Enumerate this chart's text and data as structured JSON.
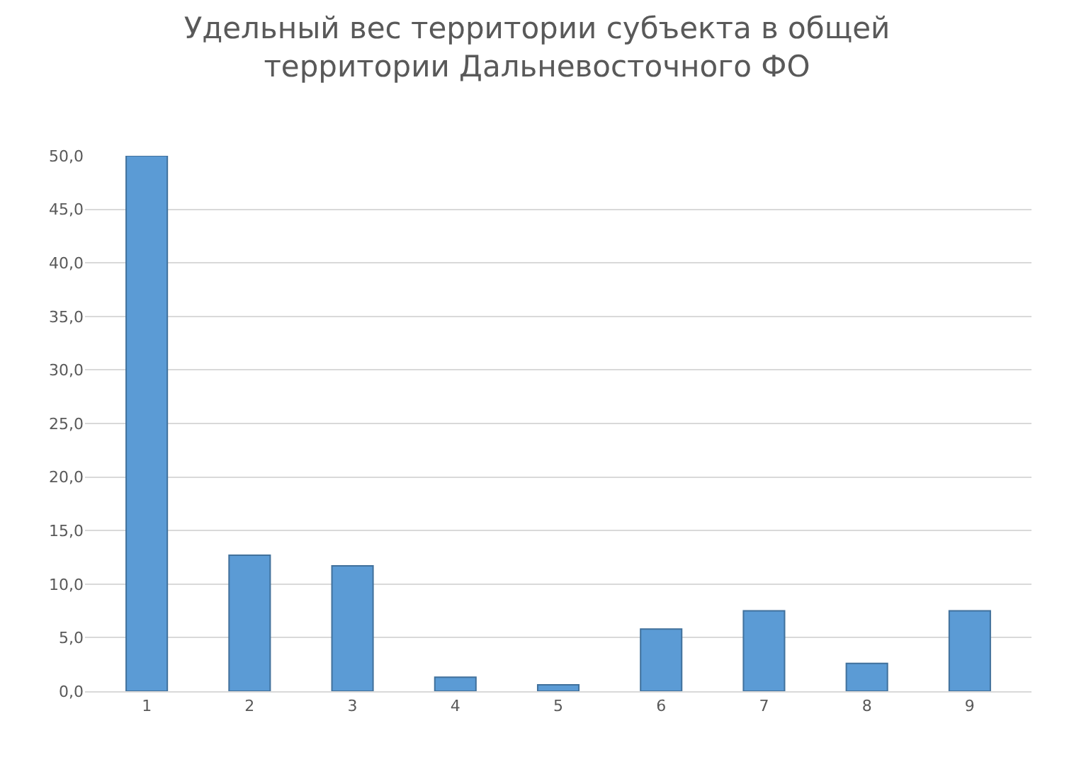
{
  "chart_data": {
    "type": "bar",
    "title": "Удельный вес территории субъекта в общей территории Дальневосточного ФО",
    "categories": [
      "1",
      "2",
      "3",
      "4",
      "5",
      "6",
      "7",
      "8",
      "9"
    ],
    "values": [
      50.0,
      12.7,
      11.7,
      1.3,
      0.6,
      5.8,
      7.5,
      2.6,
      7.5
    ],
    "color": "#5b9bd5",
    "ylim": [
      0,
      50
    ],
    "yticks": [
      {
        "value": 0,
        "label": "0,0"
      },
      {
        "value": 5,
        "label": "5,0"
      },
      {
        "value": 10,
        "label": "10,0"
      },
      {
        "value": 15,
        "label": "15,0"
      },
      {
        "value": 20,
        "label": "20,0"
      },
      {
        "value": 25,
        "label": "25,0"
      },
      {
        "value": 30,
        "label": "30,0"
      },
      {
        "value": 35,
        "label": "35,0"
      },
      {
        "value": 40,
        "label": "40,0"
      },
      {
        "value": 45,
        "label": "45,0"
      },
      {
        "value": 50,
        "label": "50,0"
      }
    ],
    "grid": "y"
  }
}
